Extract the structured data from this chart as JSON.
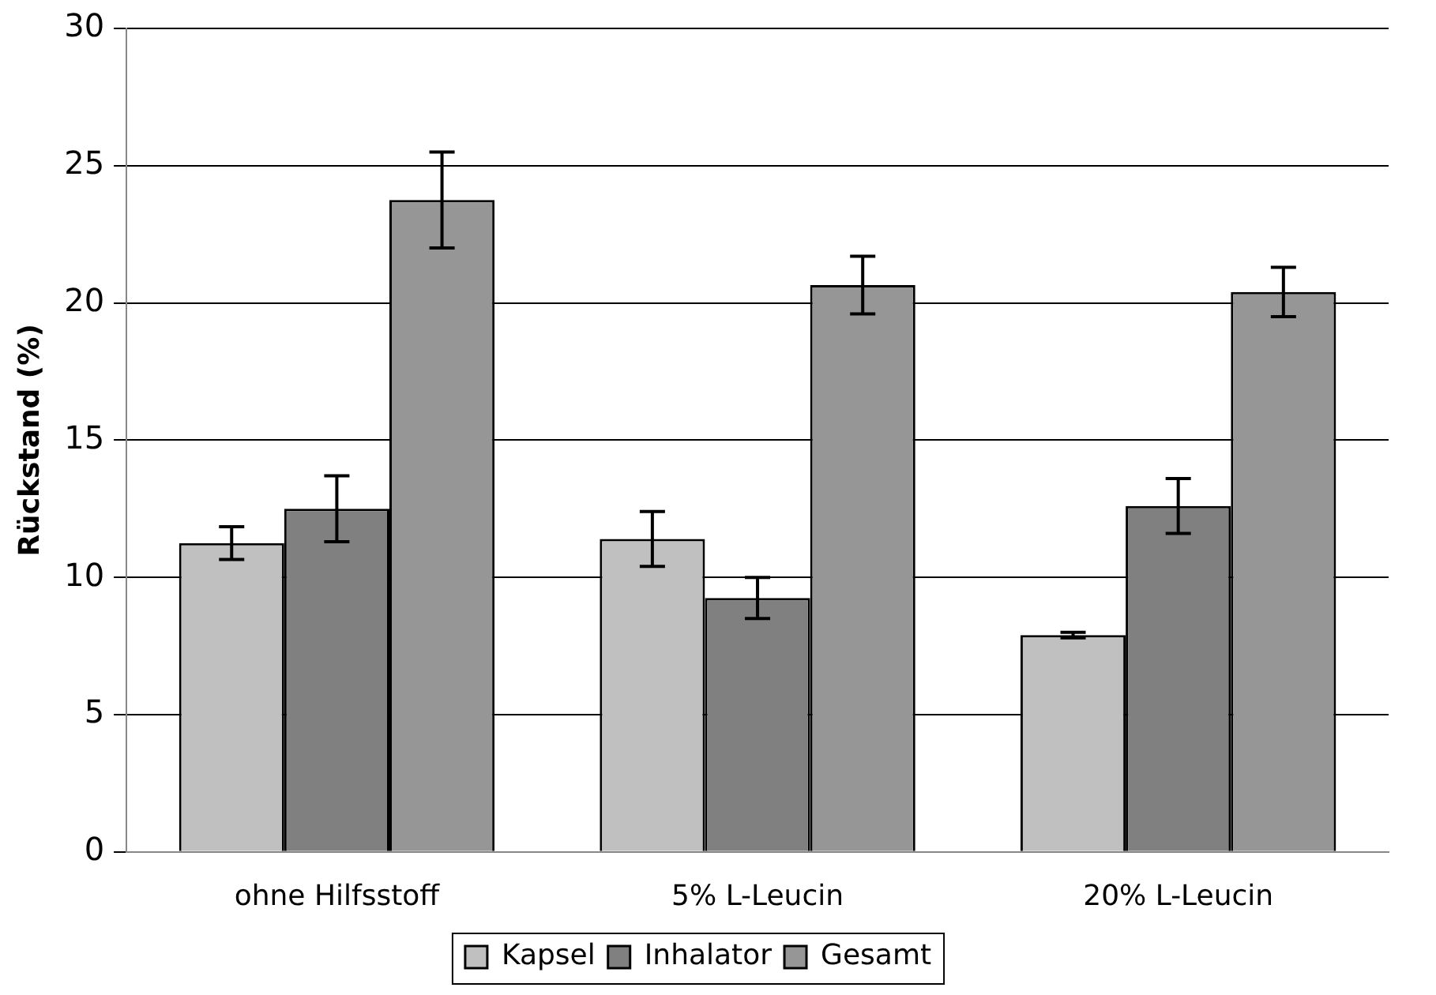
{
  "chart_data": {
    "type": "bar",
    "ylabel": "Rückstand (%)",
    "categories": [
      "ohne Hilfsstoff",
      "5% L-Leucin",
      "20% L-Leucin"
    ],
    "series": [
      {
        "name": "Kapsel",
        "color": "#c0c0c0",
        "values": [
          11.25,
          11.4,
          7.9
        ],
        "errors": [
          0.6,
          1.0,
          0.1
        ]
      },
      {
        "name": "Inhalator",
        "color": "#808080",
        "values": [
          12.5,
          9.25,
          12.6
        ],
        "errors": [
          1.2,
          0.75,
          1.0
        ]
      },
      {
        "name": "Gesamt",
        "color": "#969696",
        "values": [
          23.75,
          20.65,
          20.4
        ],
        "errors": [
          1.75,
          1.05,
          0.9
        ]
      }
    ],
    "ylim": [
      0,
      30
    ],
    "yticks": [
      0,
      5,
      10,
      15,
      20,
      25,
      30
    ],
    "grid": "y",
    "legend": "bottom"
  }
}
